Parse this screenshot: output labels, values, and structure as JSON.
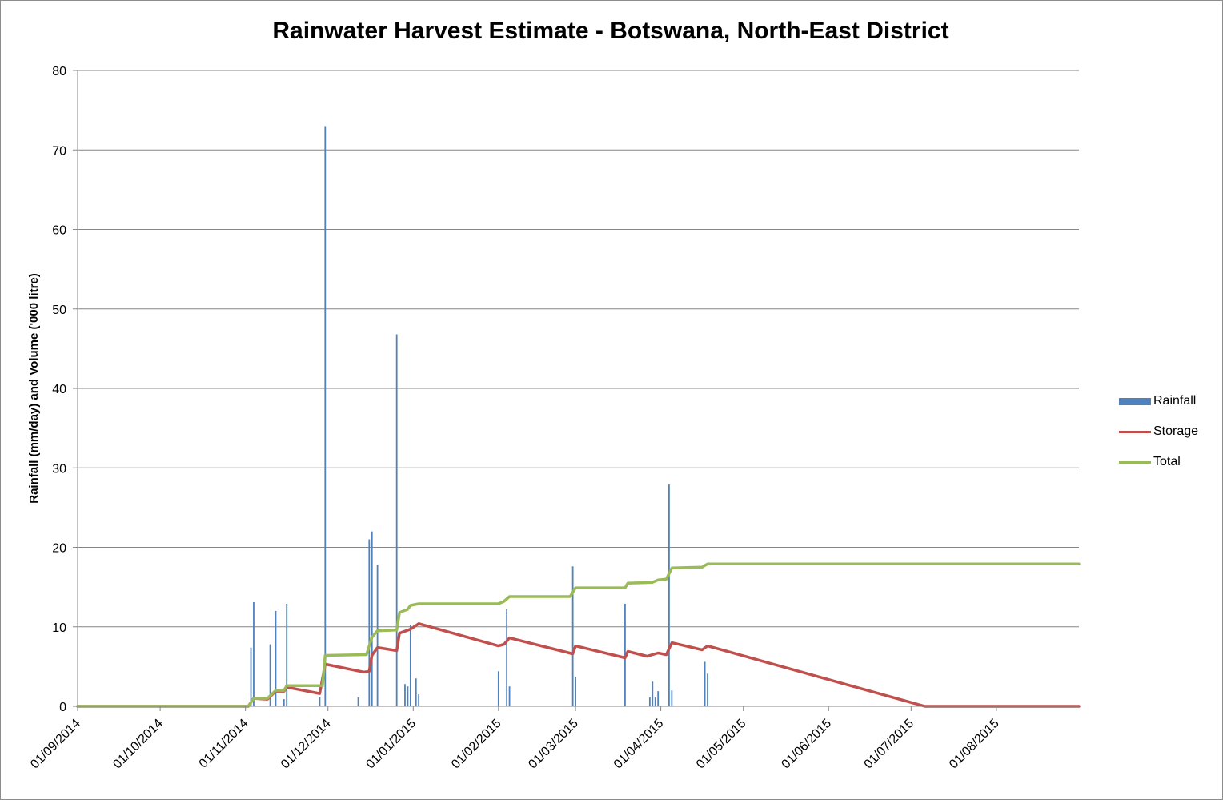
{
  "chart_data": {
    "type": "bar+line",
    "title": "Rainwater Harvest Estimate - Botswana, North-East District",
    "ylabel": "Rainfall (mm/day) and Volume ('000 litre)",
    "xlabel": "",
    "ylim": [
      0,
      80
    ],
    "yticks": [
      0,
      10,
      20,
      30,
      40,
      50,
      60,
      70,
      80
    ],
    "xlim": [
      "2014-09-01",
      "2015-08-31"
    ],
    "xticks": [
      "01/09/2014",
      "01/10/2014",
      "01/11/2014",
      "01/12/2014",
      "01/01/2015",
      "01/02/2015",
      "01/03/2015",
      "01/04/2015",
      "01/05/2015",
      "01/06/2015",
      "01/07/2015",
      "01/08/2015"
    ],
    "grid": "horizontal",
    "legend_position": "right",
    "colors": {
      "Rainfall": "#4f81bd",
      "Storage": "#c0504d",
      "Total": "#9bbb59"
    },
    "series": [
      {
        "name": "Rainfall",
        "type": "bar",
        "points": [
          [
            "2014-11-03",
            7.4
          ],
          [
            "2014-11-04",
            13.1
          ],
          [
            "2014-11-10",
            7.8
          ],
          [
            "2014-11-12",
            12.0
          ],
          [
            "2014-11-15",
            0.9
          ],
          [
            "2014-11-16",
            12.9
          ],
          [
            "2014-11-28",
            1.2
          ],
          [
            "2014-11-30",
            73.0
          ],
          [
            "2014-12-12",
            1.1
          ],
          [
            "2014-12-16",
            21.0
          ],
          [
            "2014-12-17",
            22.0
          ],
          [
            "2014-12-19",
            17.8
          ],
          [
            "2014-12-26",
            46.8
          ],
          [
            "2014-12-29",
            2.8
          ],
          [
            "2014-12-30",
            2.5
          ],
          [
            "2014-12-31",
            10.2
          ],
          [
            "2015-01-02",
            3.5
          ],
          [
            "2015-01-03",
            1.5
          ],
          [
            "2015-02-01",
            4.4
          ],
          [
            "2015-02-04",
            12.2
          ],
          [
            "2015-02-05",
            2.5
          ],
          [
            "2015-02-28",
            17.6
          ],
          [
            "2015-03-01",
            3.7
          ],
          [
            "2015-03-19",
            12.9
          ],
          [
            "2015-03-28",
            1.1
          ],
          [
            "2015-03-29",
            3.1
          ],
          [
            "2015-03-30",
            1.1
          ],
          [
            "2015-03-31",
            1.9
          ],
          [
            "2015-04-04",
            27.9
          ],
          [
            "2015-04-05",
            2.0
          ],
          [
            "2015-04-17",
            5.6
          ],
          [
            "2015-04-18",
            4.1
          ]
        ]
      },
      {
        "name": "Storage",
        "type": "line",
        "points": [
          [
            "2014-09-01",
            0
          ],
          [
            "2014-11-02",
            0
          ],
          [
            "2014-11-04",
            1.0
          ],
          [
            "2014-11-09",
            0.9
          ],
          [
            "2014-11-12",
            1.9
          ],
          [
            "2014-11-15",
            1.9
          ],
          [
            "2014-11-16",
            2.4
          ],
          [
            "2014-11-28",
            1.6
          ],
          [
            "2014-11-30",
            5.3
          ],
          [
            "2014-12-14",
            4.3
          ],
          [
            "2014-12-16",
            4.4
          ],
          [
            "2014-12-17",
            6.4
          ],
          [
            "2014-12-19",
            7.4
          ],
          [
            "2014-12-26",
            7.0
          ],
          [
            "2014-12-27",
            9.2
          ],
          [
            "2014-12-31",
            9.7
          ],
          [
            "2015-01-03",
            10.4
          ],
          [
            "2015-02-01",
            7.6
          ],
          [
            "2015-02-03",
            7.8
          ],
          [
            "2015-02-05",
            8.6
          ],
          [
            "2015-02-28",
            6.6
          ],
          [
            "2015-03-01",
            7.6
          ],
          [
            "2015-03-19",
            6.1
          ],
          [
            "2015-03-20",
            6.9
          ],
          [
            "2015-03-27",
            6.3
          ],
          [
            "2015-03-31",
            6.7
          ],
          [
            "2015-04-03",
            6.5
          ],
          [
            "2015-04-05",
            8.0
          ],
          [
            "2015-04-16",
            7.1
          ],
          [
            "2015-04-18",
            7.6
          ],
          [
            "2015-07-06",
            0
          ],
          [
            "2015-08-31",
            0
          ]
        ]
      },
      {
        "name": "Total",
        "type": "line",
        "points": [
          [
            "2014-09-01",
            0
          ],
          [
            "2014-11-02",
            0
          ],
          [
            "2014-11-04",
            1.0
          ],
          [
            "2014-11-09",
            1.0
          ],
          [
            "2014-11-12",
            2.0
          ],
          [
            "2014-11-15",
            2.0
          ],
          [
            "2014-11-16",
            2.6
          ],
          [
            "2014-11-29",
            2.6
          ],
          [
            "2014-11-30",
            6.4
          ],
          [
            "2014-12-15",
            6.5
          ],
          [
            "2014-12-17",
            8.7
          ],
          [
            "2014-12-19",
            9.5
          ],
          [
            "2014-12-26",
            9.6
          ],
          [
            "2014-12-27",
            11.8
          ],
          [
            "2014-12-30",
            12.2
          ],
          [
            "2014-12-31",
            12.7
          ],
          [
            "2015-01-03",
            12.9
          ],
          [
            "2015-02-01",
            12.9
          ],
          [
            "2015-02-03",
            13.2
          ],
          [
            "2015-02-05",
            13.8
          ],
          [
            "2015-02-27",
            13.8
          ],
          [
            "2015-03-01",
            14.9
          ],
          [
            "2015-03-19",
            14.9
          ],
          [
            "2015-03-20",
            15.5
          ],
          [
            "2015-03-29",
            15.6
          ],
          [
            "2015-03-31",
            15.9
          ],
          [
            "2015-04-03",
            16.0
          ],
          [
            "2015-04-05",
            17.4
          ],
          [
            "2015-04-16",
            17.5
          ],
          [
            "2015-04-18",
            17.9
          ],
          [
            "2015-08-31",
            17.9
          ]
        ]
      }
    ]
  }
}
